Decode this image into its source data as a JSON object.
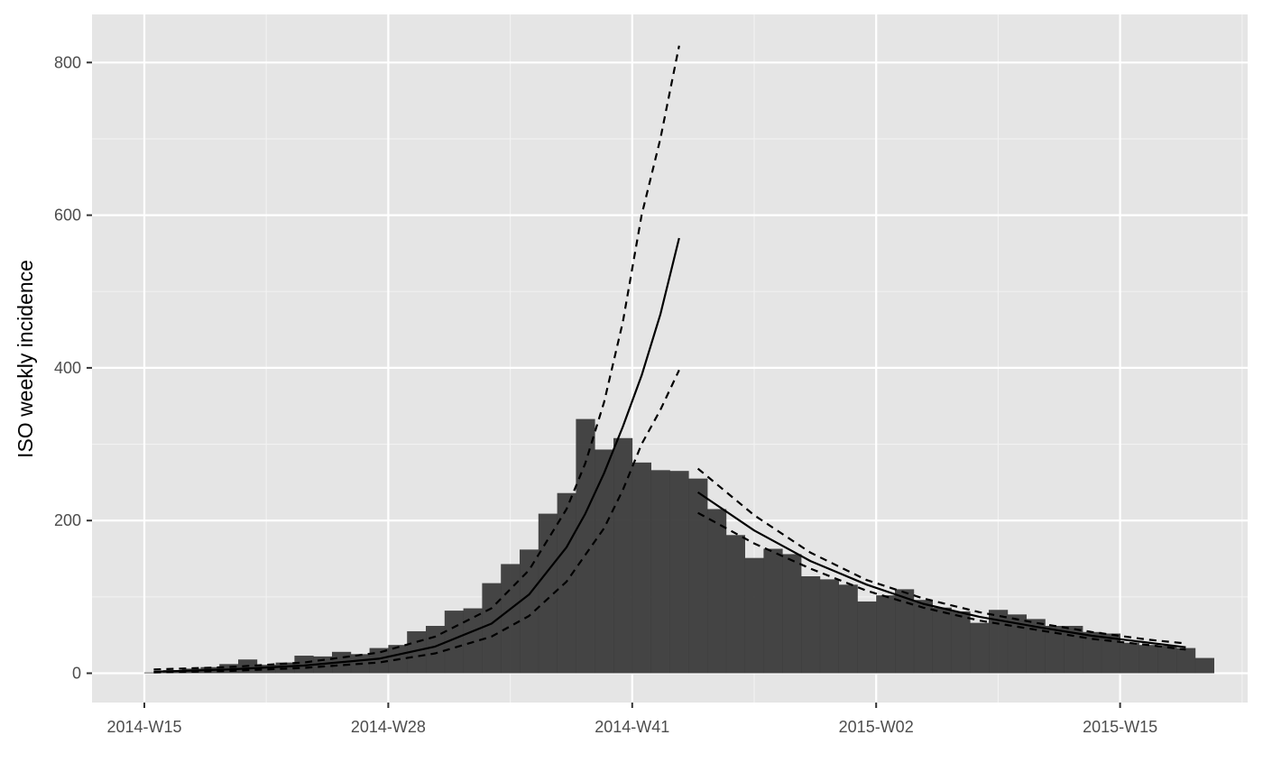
{
  "chart_data": {
    "type": "bar",
    "title": "",
    "xlabel": "",
    "ylabel": "ISO weekly incidence",
    "x_tick_labels": [
      "2014-W15",
      "2014-W28",
      "2014-W41",
      "2015-W02",
      "2015-W15"
    ],
    "y_tick_labels": [
      "0",
      "200",
      "400",
      "600",
      "800"
    ],
    "y_ticks": [
      0,
      200,
      400,
      600,
      800
    ],
    "ylim": [
      -40,
      860
    ],
    "grid": true,
    "legend": "none",
    "bar_color": "#3b3b3b",
    "panel_background": "#e5e5e5",
    "categories": [
      "2014-W15",
      "2014-W16",
      "2014-W17",
      "2014-W18",
      "2014-W19",
      "2014-W20",
      "2014-W21",
      "2014-W22",
      "2014-W23",
      "2014-W24",
      "2014-W25",
      "2014-W26",
      "2014-W27",
      "2014-W28",
      "2014-W29",
      "2014-W30",
      "2014-W31",
      "2014-W32",
      "2014-W33",
      "2014-W34",
      "2014-W35",
      "2014-W36",
      "2014-W37",
      "2014-W38",
      "2014-W39",
      "2014-W40",
      "2014-W41",
      "2014-W42",
      "2014-W43",
      "2014-W44",
      "2014-W45",
      "2014-W46",
      "2014-W47",
      "2014-W48",
      "2014-W49",
      "2014-W50",
      "2014-W51",
      "2014-W52",
      "2015-W01",
      "2015-W02",
      "2015-W03",
      "2015-W04",
      "2015-W05",
      "2015-W06",
      "2015-W07",
      "2015-W08",
      "2015-W09",
      "2015-W10",
      "2015-W11",
      "2015-W12",
      "2015-W13",
      "2015-W14",
      "2015-W15",
      "2015-W16",
      "2015-W17",
      "2015-W18",
      "2015-W19"
    ],
    "values": [
      1,
      4,
      6,
      8,
      12,
      18,
      11,
      14,
      23,
      22,
      28,
      25,
      33,
      37,
      55,
      62,
      82,
      85,
      118,
      143,
      162,
      209,
      236,
      333,
      293,
      308,
      276,
      266,
      265,
      255,
      215,
      181,
      151,
      163,
      156,
      127,
      123,
      116,
      94,
      102,
      110,
      96,
      86,
      81,
      66,
      83,
      77,
      71,
      62,
      62,
      54,
      52,
      40,
      37,
      36,
      33,
      20
    ],
    "fit_series": [
      {
        "role": "fit",
        "line_style": "solid",
        "x": [
          "2014-W15",
          "2014-W19",
          "2014-W23",
          "2014-W27",
          "2014-W30",
          "2014-W33",
          "2014-W35",
          "2014-W37",
          "2014-W38",
          "2014-W39",
          "2014-W40",
          "2014-W41",
          "2014-W42",
          "2014-W43"
        ],
        "values": [
          2,
          5,
          10,
          19,
          35,
          65,
          103,
          165,
          209,
          262,
          323,
          390,
          470,
          570
        ]
      },
      {
        "role": "upper",
        "line_style": "dashed",
        "x": [
          "2014-W15",
          "2014-W19",
          "2014-W23",
          "2014-W27",
          "2014-W30",
          "2014-W33",
          "2014-W35",
          "2014-W37",
          "2014-W38",
          "2014-W39",
          "2014-W40",
          "2014-W41",
          "2014-W42",
          "2014-W43"
        ],
        "values": [
          5,
          8,
          14,
          27,
          48,
          85,
          135,
          215,
          275,
          355,
          460,
          600,
          700,
          822
        ]
      },
      {
        "role": "lower",
        "line_style": "dashed",
        "x": [
          "2014-W15",
          "2014-W19",
          "2014-W23",
          "2014-W27",
          "2014-W30",
          "2014-W33",
          "2014-W35",
          "2014-W37",
          "2014-W38",
          "2014-W39",
          "2014-W40",
          "2014-W41",
          "2014-W42",
          "2014-W43"
        ],
        "values": [
          1,
          3,
          7,
          14,
          26,
          48,
          75,
          120,
          155,
          190,
          240,
          300,
          345,
          397
        ]
      },
      {
        "role": "fit",
        "line_style": "solid",
        "x": [
          "2014-W44",
          "2014-W47",
          "2014-W50",
          "2015-W01",
          "2015-W04",
          "2015-W07",
          "2015-W10",
          "2015-W13",
          "2015-W16",
          "2015-W18"
        ],
        "values": [
          237,
          187,
          147,
          116,
          91,
          74,
          61,
          49,
          40,
          34
        ]
      },
      {
        "role": "upper",
        "line_style": "dashed",
        "x": [
          "2014-W44",
          "2014-W47",
          "2014-W50",
          "2015-W01",
          "2015-W04",
          "2015-W07",
          "2015-W10",
          "2015-W13",
          "2015-W16",
          "2015-W18"
        ],
        "values": [
          268,
          207,
          158,
          122,
          98,
          80,
          66,
          54,
          44,
          39
        ]
      },
      {
        "role": "lower",
        "line_style": "dashed",
        "x": [
          "2014-W44",
          "2014-W47",
          "2014-W50",
          "2015-W01",
          "2015-W04",
          "2015-W07",
          "2015-W10",
          "2015-W13",
          "2015-W16",
          "2015-W18"
        ],
        "values": [
          210,
          170,
          137,
          108,
          86,
          69,
          57,
          45,
          37,
          31
        ]
      }
    ]
  }
}
